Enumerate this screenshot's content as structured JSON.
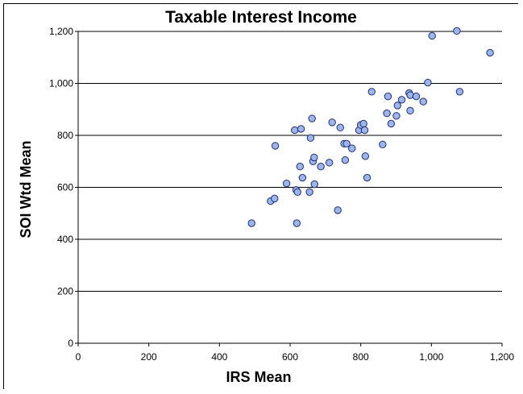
{
  "chart_data": {
    "type": "scatter",
    "title": "Taxable Interest Income",
    "xlabel": "IRS Mean",
    "ylabel": "SOI Wtd Mean",
    "xlim": [
      0,
      1200
    ],
    "ylim": [
      0,
      1200
    ],
    "x_ticks": [
      "0",
      "200",
      "400",
      "600",
      "800",
      "1,000",
      "1,200"
    ],
    "y_ticks": [
      "0",
      "200",
      "400",
      "600",
      "800",
      "1,000",
      "1,200"
    ],
    "grid": "horizontal",
    "marker_fill": "#9db5e8",
    "marker_edge": "#1f2f7a",
    "points": [
      {
        "x": 491,
        "y": 462
      },
      {
        "x": 545,
        "y": 547
      },
      {
        "x": 556,
        "y": 557
      },
      {
        "x": 558,
        "y": 760
      },
      {
        "x": 590,
        "y": 615
      },
      {
        "x": 613,
        "y": 820
      },
      {
        "x": 617,
        "y": 590
      },
      {
        "x": 619,
        "y": 462
      },
      {
        "x": 621,
        "y": 582
      },
      {
        "x": 628,
        "y": 680
      },
      {
        "x": 631,
        "y": 825
      },
      {
        "x": 635,
        "y": 637
      },
      {
        "x": 655,
        "y": 582
      },
      {
        "x": 658,
        "y": 790
      },
      {
        "x": 662,
        "y": 865
      },
      {
        "x": 665,
        "y": 700
      },
      {
        "x": 668,
        "y": 715
      },
      {
        "x": 669,
        "y": 612
      },
      {
        "x": 687,
        "y": 680
      },
      {
        "x": 711,
        "y": 695
      },
      {
        "x": 719,
        "y": 850
      },
      {
        "x": 735,
        "y": 512
      },
      {
        "x": 742,
        "y": 830
      },
      {
        "x": 753,
        "y": 768
      },
      {
        "x": 756,
        "y": 705
      },
      {
        "x": 760,
        "y": 768
      },
      {
        "x": 775,
        "y": 750
      },
      {
        "x": 795,
        "y": 820
      },
      {
        "x": 800,
        "y": 840
      },
      {
        "x": 808,
        "y": 845
      },
      {
        "x": 811,
        "y": 820
      },
      {
        "x": 813,
        "y": 720
      },
      {
        "x": 818,
        "y": 637
      },
      {
        "x": 831,
        "y": 968
      },
      {
        "x": 862,
        "y": 765
      },
      {
        "x": 874,
        "y": 885
      },
      {
        "x": 877,
        "y": 950
      },
      {
        "x": 886,
        "y": 845
      },
      {
        "x": 901,
        "y": 875
      },
      {
        "x": 904,
        "y": 915
      },
      {
        "x": 916,
        "y": 937
      },
      {
        "x": 937,
        "y": 963
      },
      {
        "x": 940,
        "y": 895
      },
      {
        "x": 940,
        "y": 955
      },
      {
        "x": 957,
        "y": 950
      },
      {
        "x": 977,
        "y": 930
      },
      {
        "x": 990,
        "y": 1003
      },
      {
        "x": 1002,
        "y": 1183
      },
      {
        "x": 1072,
        "y": 1202
      },
      {
        "x": 1080,
        "y": 968
      },
      {
        "x": 1166,
        "y": 1118
      }
    ]
  }
}
